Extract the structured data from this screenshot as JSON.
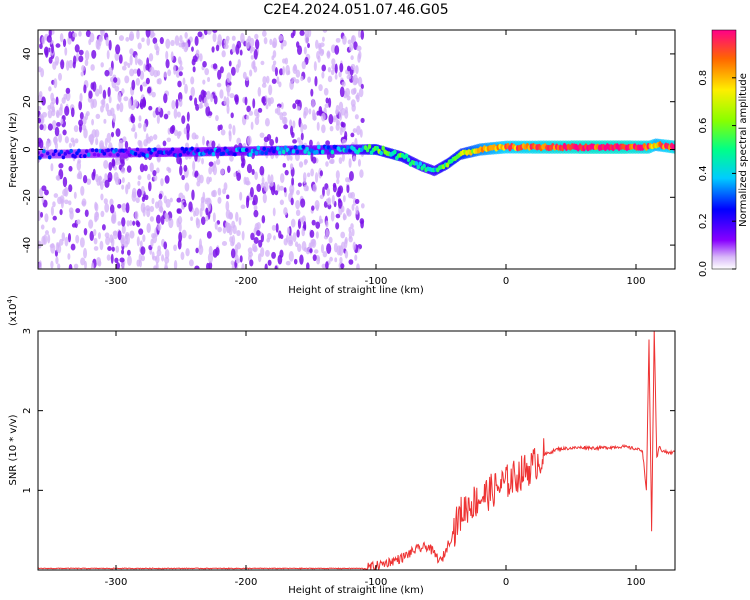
{
  "title": "C2E4.2024.051.07.46.G05",
  "colors": {
    "snr_line": "#ee3333",
    "spectral_dots": "#8a2be2",
    "frame": "#000000"
  },
  "chart_data": [
    {
      "type": "heatmap",
      "title": "C2E4.2024.051.07.46.G05",
      "xlabel": "Height of straight line (km)",
      "ylabel": "Frequency (Hz)",
      "xlim": [
        -360,
        130
      ],
      "ylim": [
        -50,
        50
      ],
      "xticks": [
        -300,
        -200,
        -100,
        0,
        100
      ],
      "yticks": [
        -40,
        -20,
        0,
        20,
        40
      ],
      "colorbar": {
        "label": "Normalized spectral amplitude",
        "range": [
          0.0,
          1.0
        ],
        "ticks": [
          "0.0",
          "0.2",
          "0.4",
          "0.6",
          "0.8"
        ],
        "colormap": "rainbow"
      },
      "ridge": {
        "x": [
          -360,
          -120,
          -100,
          -80,
          -65,
          -55,
          -45,
          -35,
          -20,
          0,
          30,
          60,
          90,
          110,
          115,
          130
        ],
        "frequency": [
          -2,
          0,
          0,
          -3,
          -7,
          -9,
          -6,
          -2,
          0,
          1,
          1,
          1,
          1,
          1,
          2,
          1
        ],
        "amplitude": [
          0.2,
          0.35,
          0.55,
          0.5,
          0.45,
          0.45,
          0.55,
          0.6,
          0.75,
          0.85,
          0.9,
          0.95,
          0.95,
          0.9,
          0.8,
          0.9
        ]
      },
      "noise_extent_x": [
        -360,
        -110
      ]
    },
    {
      "type": "line",
      "xlabel": "Height of straight line (km)",
      "ylabel": "SNR (10 * v/v)",
      "scale_label": "(x10^4)",
      "scale_base": "(x10",
      "scale_exp": "4",
      "xlim": [
        -360,
        130
      ],
      "ylim": [
        0,
        3
      ],
      "xticks": [
        -300,
        -200,
        -100,
        0,
        100
      ],
      "yticks": [
        1,
        2,
        3
      ],
      "series": [
        {
          "x": [
            -360,
            -200,
            -110,
            -100,
            -90,
            -80,
            -70,
            -60,
            -50,
            -45,
            -40,
            -35,
            -30,
            -20,
            -10,
            0,
            10,
            20,
            30,
            40,
            50,
            60,
            70,
            80,
            90,
            100,
            105,
            108,
            110,
            112,
            114,
            116,
            118,
            120,
            125,
            130
          ],
          "y": [
            0.02,
            0.02,
            0.02,
            0.05,
            0.1,
            0.15,
            0.25,
            0.3,
            0.1,
            0.3,
            0.5,
            0.7,
            0.8,
            0.9,
            1.0,
            1.1,
            1.2,
            1.3,
            1.45,
            1.52,
            1.53,
            1.54,
            1.53,
            1.54,
            1.55,
            1.52,
            1.5,
            1.0,
            2.9,
            0.5,
            3.0,
            1.4,
            1.55,
            1.5,
            1.47,
            1.48
          ]
        }
      ]
    }
  ]
}
